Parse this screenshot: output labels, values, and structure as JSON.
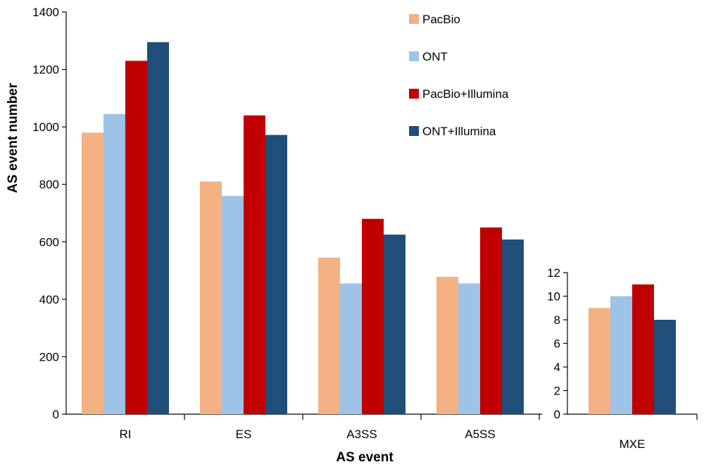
{
  "chart_data": {
    "type": "bar",
    "xlabel": "AS event",
    "ylabel": "AS event number",
    "legend_position": "top-right",
    "colors": {
      "PacBio": "#F4B183",
      "ONT": "#9DC3E6",
      "PacBio+Illumina": "#C00000",
      "ONT+Illumina": "#1F4E79"
    },
    "panels": [
      {
        "categories": [
          "RI",
          "ES",
          "A3SS",
          "A5SS"
        ],
        "ylim": [
          0,
          1400
        ],
        "yticks": [
          "0",
          "200",
          "400",
          "600",
          "800",
          "1000",
          "1200",
          "1400"
        ],
        "series": [
          {
            "name": "PacBio",
            "values": [
              980,
              810,
              545,
              478
            ]
          },
          {
            "name": "ONT",
            "values": [
              1045,
              760,
              455,
              455
            ]
          },
          {
            "name": "PacBio+Illumina",
            "values": [
              1230,
              1040,
              680,
              650
            ]
          },
          {
            "name": "ONT+Illumina",
            "values": [
              1295,
              972,
              625,
              608
            ]
          }
        ]
      },
      {
        "categories": [
          "MXE"
        ],
        "ylim": [
          0,
          12
        ],
        "yticks": [
          "0",
          "2",
          "4",
          "6",
          "8",
          "10",
          "12"
        ],
        "series": [
          {
            "name": "PacBio",
            "values": [
              9
            ]
          },
          {
            "name": "ONT",
            "values": [
              10
            ]
          },
          {
            "name": "PacBio+Illumina",
            "values": [
              11
            ]
          },
          {
            "name": "ONT+Illumina",
            "values": [
              8
            ]
          }
        ]
      }
    ],
    "legend": [
      "PacBio",
      "ONT",
      "PacBio+Illumina",
      "ONT+Illumina"
    ]
  }
}
